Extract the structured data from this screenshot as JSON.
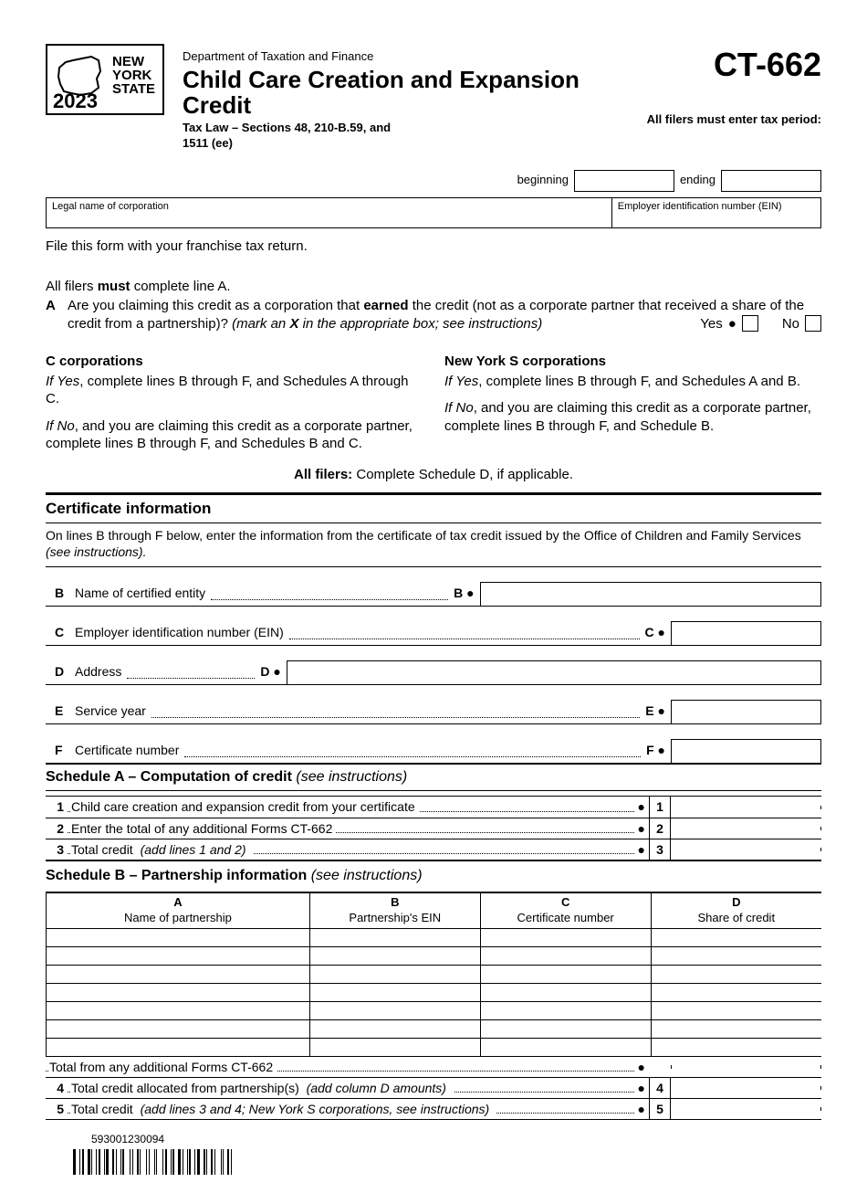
{
  "logo": {
    "state_text": "NEW\nYORK\nSTATE",
    "year": "2023"
  },
  "header": {
    "dept": "Department of Taxation and Finance",
    "title": "Child Care Creation and Expansion Credit",
    "tax_law": "Tax Law – Sections 48, 210-B.59, and 1511 (ee)",
    "form_number": "CT-662",
    "period_note": "All filers must enter tax period:",
    "beginning_label": "beginning",
    "ending_label": "ending"
  },
  "info": {
    "legal_name_label": "Legal name of corporation",
    "ein_label": "Employer identification number (EIN)"
  },
  "intro": "File this form with your franchise tax return.",
  "lineA": {
    "intro_pre": "All filers ",
    "intro_bold": "must",
    "intro_post": " complete line A.",
    "letter": "A",
    "q1": "Are you claiming this credit as a corporation that ",
    "q_bold": "earned",
    "q2": " the credit (not as a corporate partner that received a share of the credit from a partnership)? ",
    "q_ital": "(mark an ",
    "q_ital_bold": "X",
    "q_ital2": " in the appropriate box; see instructions)",
    "yes": "Yes",
    "no": "No"
  },
  "cols": {
    "c_title": "C corporations",
    "c_yes": "If Yes, complete lines B through F, and Schedules A through C.",
    "c_no": "If No, and you are claiming this credit as a corporate partner, complete lines B through F, and Schedules B and C.",
    "s_title": "New York S corporations",
    "s_yes": "If Yes, complete lines B through F, and Schedules A and B.",
    "s_no": "If No, and you are claiming this credit as a corporate partner, complete lines B through F, and Schedule B.",
    "all_bold": "All filers:",
    "all_rest": " Complete Schedule D, if applicable."
  },
  "cert": {
    "title": "Certificate information",
    "sub1": "On lines B through F below, enter the information from the certificate of tax credit issued by the Office of Children and Family Services ",
    "sub_ital": "(see instructions).",
    "B": {
      "letter": "B",
      "label": "Name of certified entity",
      "marker": "B"
    },
    "C": {
      "letter": "C",
      "label": "Employer identification number (EIN)",
      "marker": "C"
    },
    "D": {
      "letter": "D",
      "label": "Address",
      "marker": "D"
    },
    "E": {
      "letter": "E",
      "label": "Service year",
      "marker": "E"
    },
    "F": {
      "letter": "F",
      "label": "Certificate number",
      "marker": "F"
    }
  },
  "schedA": {
    "title": "Schedule A – Computation of credit ",
    "title_ital": "(see instructions)",
    "rows": [
      {
        "n": "1",
        "text": "Child care creation and expansion credit from your certificate"
      },
      {
        "n": "2",
        "text": "Enter the total of any additional Forms CT-662"
      },
      {
        "n": "3",
        "text_pre": "Total credit ",
        "text_ital": "(add lines 1 and 2)"
      }
    ]
  },
  "schedB": {
    "title": "Schedule B – Partnership information ",
    "title_ital": "(see instructions)",
    "cols": {
      "A": {
        "l": "A",
        "t": "Name of partnership"
      },
      "B": {
        "l": "B",
        "t": "Partnership's EIN"
      },
      "C": {
        "l": "C",
        "t": "Certificate number"
      },
      "D": {
        "l": "D",
        "t": "Share of credit"
      }
    },
    "blank_rows": 7,
    "total_additional": "Total from any additional Forms CT-662",
    "row4": {
      "n": "4",
      "text_pre": "Total credit allocated from partnership(s) ",
      "text_ital": "(add column D amounts)"
    },
    "row5": {
      "n": "5",
      "text_pre": "Total credit ",
      "text_ital": "(add lines 3 and 4; New York S corporations, see instructions)"
    }
  },
  "barcode": {
    "number": "593001230094"
  },
  "colors": {
    "text": "#000000",
    "bg": "#ffffff",
    "border": "#000000"
  }
}
